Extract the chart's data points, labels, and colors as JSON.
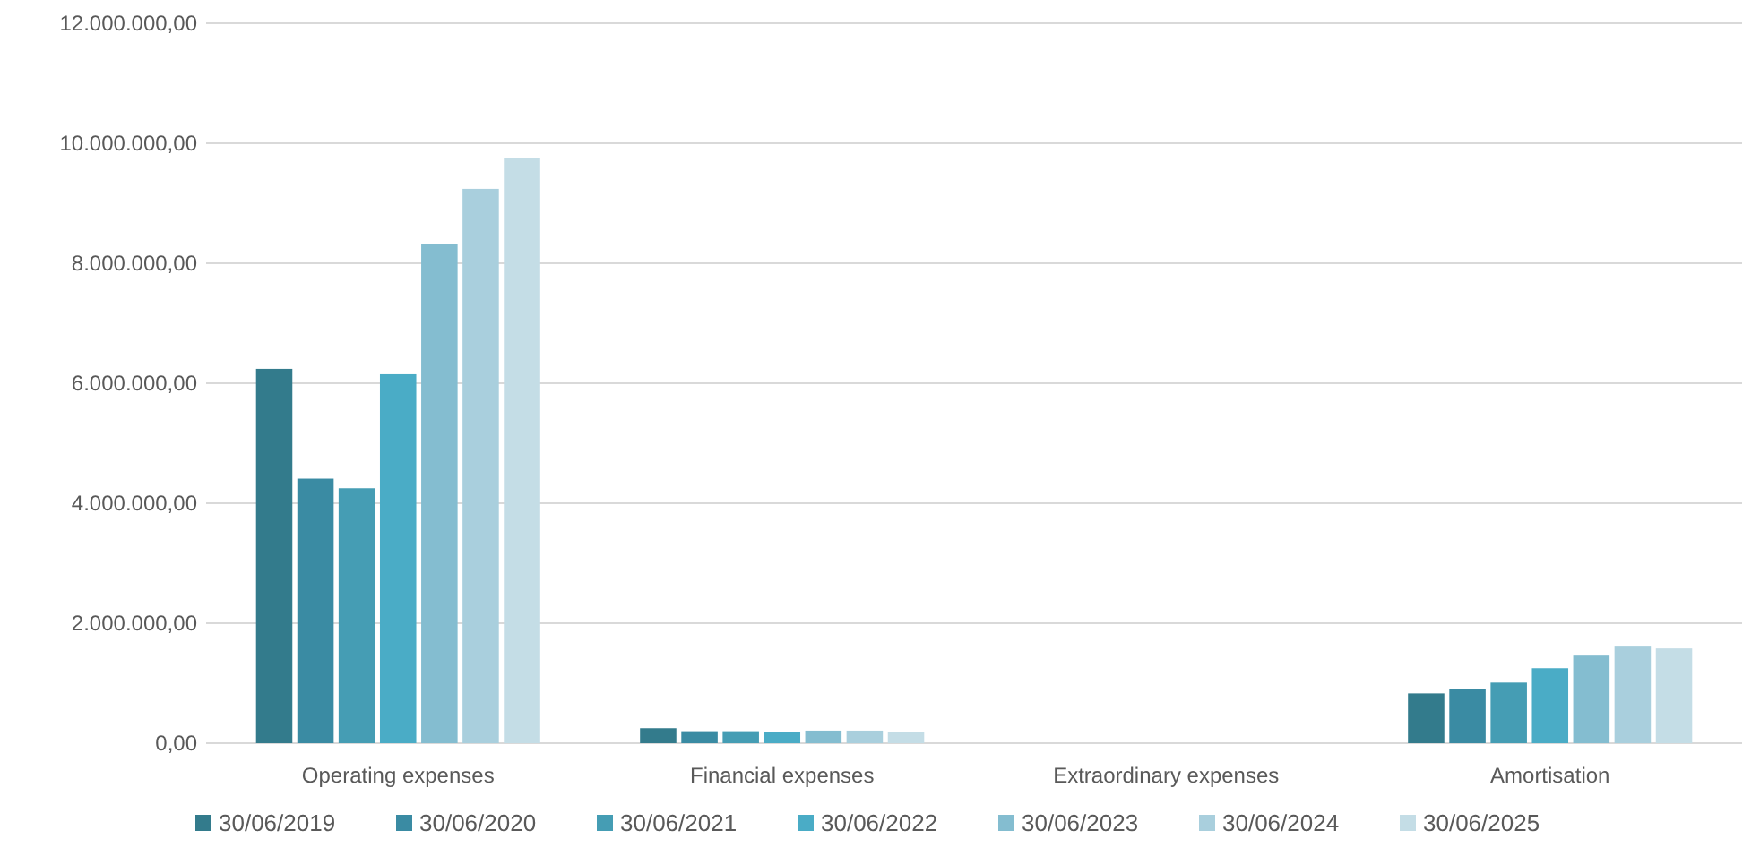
{
  "chart_data": {
    "type": "bar",
    "categories": [
      "Operating expenses",
      "Financial expenses",
      "Extraordinary expenses",
      "Amortisation"
    ],
    "series": [
      {
        "name": "30/06/2019",
        "color": "#337b8c",
        "values": [
          6240000,
          250000,
          0,
          830000
        ]
      },
      {
        "name": "30/06/2020",
        "color": "#3a8ba3",
        "values": [
          4410000,
          200000,
          0,
          910000
        ]
      },
      {
        "name": "30/06/2021",
        "color": "#459db4",
        "values": [
          4250000,
          200000,
          0,
          1010000
        ]
      },
      {
        "name": "30/06/2022",
        "color": "#4aacc6",
        "values": [
          6150000,
          180000,
          0,
          1250000
        ]
      },
      {
        "name": "30/06/2023",
        "color": "#84bdd0",
        "values": [
          8320000,
          210000,
          0,
          1460000
        ]
      },
      {
        "name": "30/06/2024",
        "color": "#a9cfdd",
        "values": [
          9240000,
          210000,
          0,
          1610000
        ]
      },
      {
        "name": "30/06/2025",
        "color": "#c4dde6",
        "values": [
          9760000,
          180000,
          0,
          1580000
        ]
      }
    ],
    "ylim": [
      0,
      12000000
    ],
    "yticks": [
      {
        "value": 0,
        "label": "0,00"
      },
      {
        "value": 2000000,
        "label": "2.000.000,00"
      },
      {
        "value": 4000000,
        "label": "4.000.000,00"
      },
      {
        "value": 6000000,
        "label": "6.000.000,00"
      },
      {
        "value": 8000000,
        "label": "8.000.000,00"
      },
      {
        "value": 10000000,
        "label": "10.000.000,00"
      },
      {
        "value": 12000000,
        "label": "12.000.000,00"
      }
    ],
    "grid": "y",
    "legend": "bottom"
  }
}
